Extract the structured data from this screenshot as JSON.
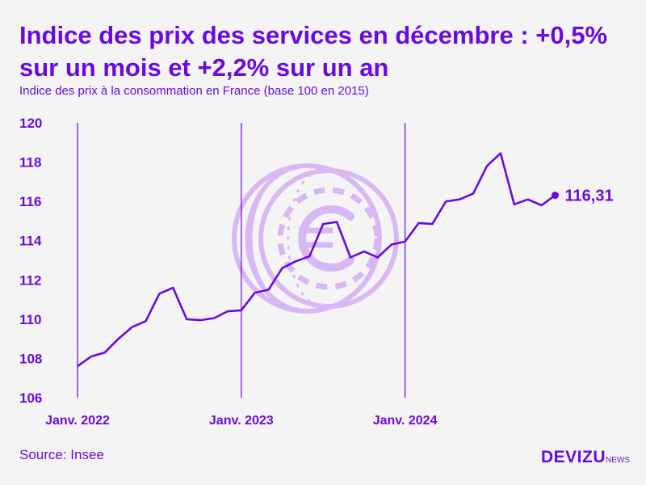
{
  "header": {
    "title": "Indice des prix des services en décembre : +0,5% sur un mois et +2,2% sur un an",
    "subtitle": "Indice des prix à la consommation en France (base 100 en 2015)"
  },
  "footer": {
    "source": "Source: Insee",
    "brand_main": "DEVIZU",
    "brand_sub": "NEWS"
  },
  "colors": {
    "accent": "#6a0ae0",
    "background": "#f4f4f4",
    "coin": "#d8b8f2"
  },
  "chart_data": {
    "type": "line",
    "title": "Indice des prix des services en décembre : +0,5% sur un mois et +2,2% sur un an",
    "ylabel": "Indice des prix à la consommation en France (base 100 en 2015)",
    "xlabel": "",
    "ylim": [
      106,
      120
    ],
    "yticks": [
      106,
      108,
      110,
      112,
      114,
      116,
      118,
      120
    ],
    "grid": false,
    "xticks": [
      {
        "label": "Janv. 2022",
        "index": 0
      },
      {
        "label": "Janv. 2023",
        "index": 12
      },
      {
        "label": "Janv. 2024",
        "index": 24
      }
    ],
    "series": [
      {
        "name": "Indice des prix des services",
        "values": [
          107.6,
          108.1,
          108.3,
          109.0,
          109.6,
          109.9,
          111.3,
          111.6,
          110.0,
          109.95,
          110.05,
          110.4,
          110.45,
          111.35,
          111.5,
          112.6,
          112.95,
          113.2,
          114.85,
          114.95,
          113.15,
          113.45,
          113.15,
          113.8,
          113.95,
          114.9,
          114.85,
          116.0,
          116.1,
          116.4,
          117.8,
          118.45,
          115.85,
          116.1,
          115.8,
          116.31
        ]
      }
    ],
    "end_label": "116,31",
    "annotations": [
      "116,31"
    ]
  }
}
